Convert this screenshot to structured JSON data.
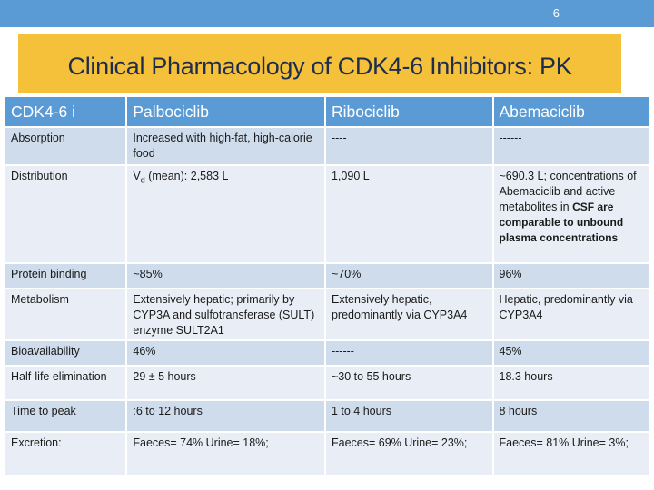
{
  "slide_number": "6",
  "title": "Clinical Pharmacology of CDK4-6 Inhibitors: PK",
  "table": {
    "headers": [
      "CDK4-6 i",
      "Palbociclib",
      "Ribociclib",
      "Abemaciclib"
    ],
    "rows": [
      {
        "param": "Absorption",
        "palbo": "Increased with high-fat, high-calorie food",
        "ribo": "----",
        "abema": "------"
      },
      {
        "param": "Distribution",
        "palbo_prefix": "V",
        "palbo_sub": "d",
        "palbo_rest": " (mean): 2,583 L",
        "ribo": "1,090 L",
        "abema_plain": "~690.3 L; concentrations of Abemaciclib and active metabolites in",
        "abema_bold": "CSF are comparable to unbound plasma concentrations"
      },
      {
        "param": "Protein binding",
        "palbo": "~85%",
        "ribo": "~70%",
        "abema": "96%"
      },
      {
        "param": "Metabolism",
        "palbo": "Extensively hepatic; primarily by CYP3A and sulfotransferase (SULT) enzyme SULT2A1",
        "ribo": "Extensively hepatic, predominantly via CYP3A4",
        "abema": "Hepatic, predominantly via CYP3A4"
      },
      {
        "param": "Bioavailability",
        "palbo": "46%",
        "ribo": "------",
        "abema": "45%"
      },
      {
        "param": "Half-life elimination",
        "palbo": "29 ± 5 hours",
        "ribo": "~30 to 55 hours",
        "abema": "18.3 hours"
      },
      {
        "param": "Time to peak",
        "palbo": ":6 to 12 hours",
        "ribo": "1 to 4 hours",
        "abema": "8 hours"
      },
      {
        "param": "Excretion:",
        "palbo": "Faeces= 74% Urine= 18%;",
        "ribo": "Faeces= 69% Urine= 23%;",
        "abema": "Faeces= 81% Urine= 3%;"
      }
    ]
  },
  "colors": {
    "header_blue": "#5b9bd5",
    "title_yellow": "#f5c13a",
    "row_dark": "#cfdcec",
    "row_light": "#e9eef6"
  }
}
